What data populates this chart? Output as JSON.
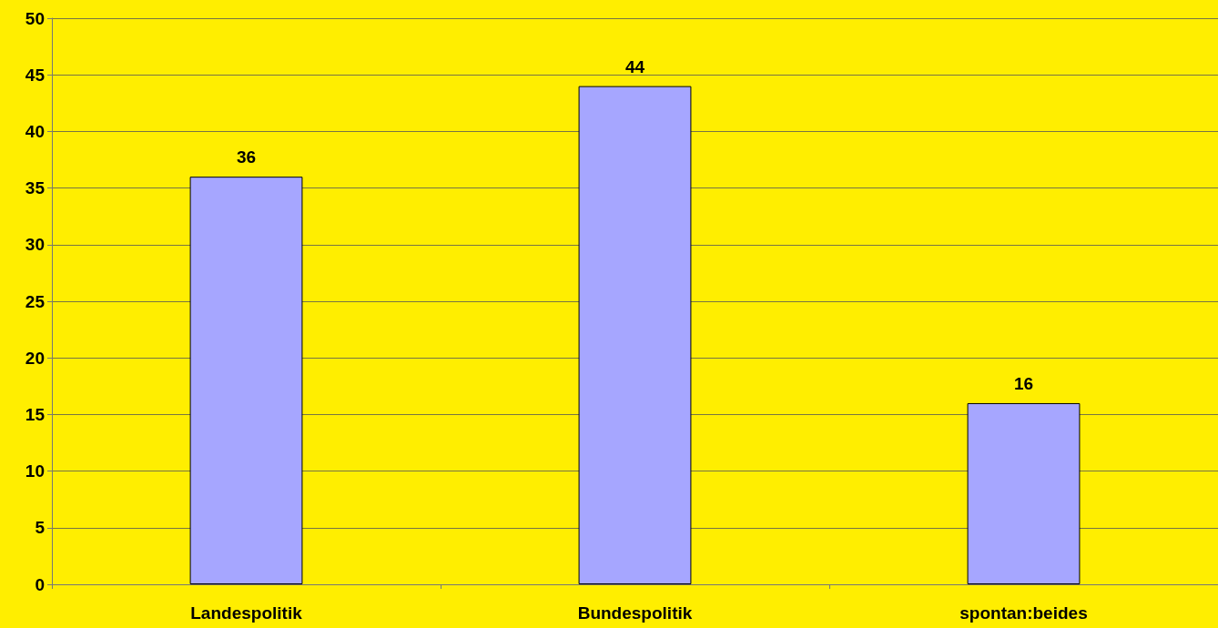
{
  "chart_data": {
    "type": "bar",
    "categories": [
      "Landespolitik",
      "Bundespolitik",
      "spontan:beides"
    ],
    "values": [
      36,
      44,
      16
    ],
    "color": "#a6a6ff",
    "data_labels": true,
    "ylim": [
      0,
      50
    ],
    "yticks": [
      0,
      5,
      10,
      15,
      20,
      25,
      30,
      35,
      40,
      45,
      50
    ],
    "grid": "y"
  }
}
